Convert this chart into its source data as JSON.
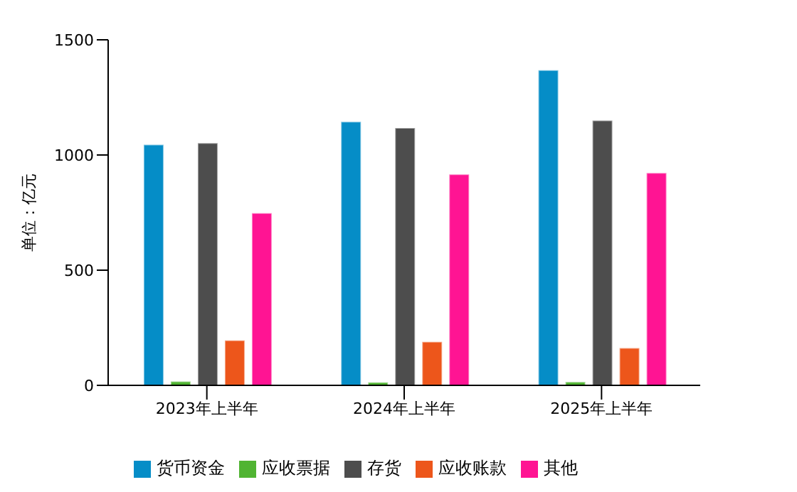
{
  "chart_data": {
    "type": "bar",
    "ylabel": "单位：亿元",
    "categories": [
      "2023年上半年",
      "2024年上半年",
      "2025年上半年"
    ],
    "series": [
      {
        "name": "货币资金",
        "color": "#058dc7",
        "values": [
          1045,
          1144,
          1368
        ]
      },
      {
        "name": "应收票据",
        "color": "#50b432",
        "values": [
          17,
          13,
          15
        ]
      },
      {
        "name": "存货",
        "color": "#4d4d4d",
        "values": [
          1052,
          1117,
          1150
        ]
      },
      {
        "name": "应收账款",
        "color": "#ed561b",
        "values": [
          195,
          189,
          162
        ]
      },
      {
        "name": "其他",
        "color": "#ff1493",
        "values": [
          748,
          916,
          922
        ]
      }
    ],
    "ylim": [
      0,
      1500
    ],
    "yticks": [
      0,
      500,
      1000,
      1500
    ],
    "grid": false,
    "legend": "bottom"
  }
}
